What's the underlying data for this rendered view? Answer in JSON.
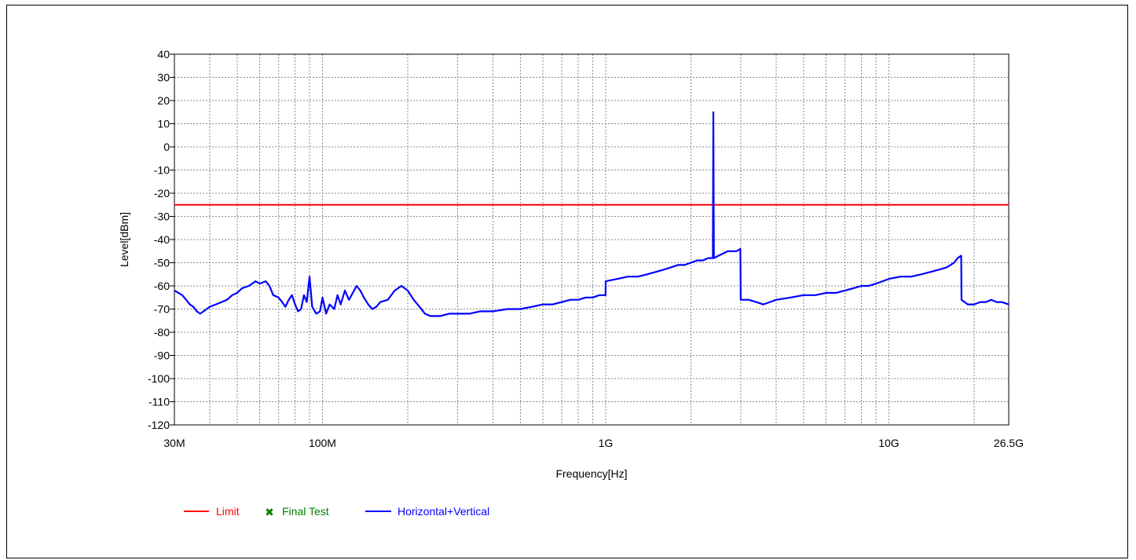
{
  "chart_data": {
    "type": "line",
    "xlabel": "Frequency[Hz]",
    "ylabel": "Level[dBm]",
    "x_scale": "log",
    "xlim": [
      "30M",
      "26.5G"
    ],
    "ylim": [
      -120,
      40
    ],
    "y_ticks": [
      40,
      30,
      20,
      10,
      0,
      -10,
      -20,
      -30,
      -40,
      -50,
      -60,
      -70,
      -80,
      -90,
      -100,
      -110,
      -120
    ],
    "x_ticks": [
      {
        "label": "30M",
        "hz": 30000000
      },
      {
        "label": "100M",
        "hz": 100000000
      },
      {
        "label": "1G",
        "hz": 1000000000
      },
      {
        "label": "10G",
        "hz": 10000000000
      },
      {
        "label": "26.5G",
        "hz": 26500000000
      }
    ],
    "grid": true,
    "legend_position": "bottom-left",
    "series": [
      {
        "name": "Limit",
        "color": "#ff0000",
        "points": [
          [
            30000000,
            -25
          ],
          [
            26500000000,
            -25
          ]
        ]
      },
      {
        "name": "Final Test",
        "color": "#008000",
        "points": []
      },
      {
        "name": "Horizontal+Vertical",
        "color": "#0000ff",
        "points": [
          [
            30000000,
            -62
          ],
          [
            31000000,
            -63
          ],
          [
            32000000,
            -64
          ],
          [
            33000000,
            -66
          ],
          [
            34000000,
            -68
          ],
          [
            35000000,
            -69
          ],
          [
            36000000,
            -71
          ],
          [
            37000000,
            -72
          ],
          [
            38000000,
            -71
          ],
          [
            40000000,
            -69
          ],
          [
            42000000,
            -68
          ],
          [
            44000000,
            -67
          ],
          [
            46000000,
            -66
          ],
          [
            48000000,
            -64
          ],
          [
            50000000,
            -63
          ],
          [
            52000000,
            -61
          ],
          [
            55000000,
            -60
          ],
          [
            58000000,
            -58
          ],
          [
            60000000,
            -59
          ],
          [
            63000000,
            -58
          ],
          [
            65000000,
            -60
          ],
          [
            67000000,
            -64
          ],
          [
            70000000,
            -65
          ],
          [
            72000000,
            -67
          ],
          [
            74000000,
            -69
          ],
          [
            76000000,
            -66
          ],
          [
            78000000,
            -64
          ],
          [
            80000000,
            -68
          ],
          [
            82000000,
            -71
          ],
          [
            84000000,
            -70
          ],
          [
            86000000,
            -64
          ],
          [
            88000000,
            -67
          ],
          [
            90000000,
            -56
          ],
          [
            92000000,
            -69
          ],
          [
            95000000,
            -72
          ],
          [
            98000000,
            -71
          ],
          [
            100000000,
            -65
          ],
          [
            103000000,
            -72
          ],
          [
            106000000,
            -68
          ],
          [
            110000000,
            -70
          ],
          [
            113000000,
            -64
          ],
          [
            116000000,
            -68
          ],
          [
            120000000,
            -62
          ],
          [
            124000000,
            -66
          ],
          [
            128000000,
            -63
          ],
          [
            132000000,
            -60
          ],
          [
            136000000,
            -62
          ],
          [
            140000000,
            -65
          ],
          [
            145000000,
            -68
          ],
          [
            150000000,
            -70
          ],
          [
            155000000,
            -69
          ],
          [
            160000000,
            -67
          ],
          [
            170000000,
            -66
          ],
          [
            180000000,
            -62
          ],
          [
            190000000,
            -60
          ],
          [
            200000000,
            -62
          ],
          [
            210000000,
            -66
          ],
          [
            220000000,
            -69
          ],
          [
            230000000,
            -72
          ],
          [
            240000000,
            -73
          ],
          [
            260000000,
            -73
          ],
          [
            280000000,
            -72
          ],
          [
            300000000,
            -72
          ],
          [
            330000000,
            -72
          ],
          [
            360000000,
            -71
          ],
          [
            400000000,
            -71
          ],
          [
            450000000,
            -70
          ],
          [
            500000000,
            -70
          ],
          [
            550000000,
            -69
          ],
          [
            600000000,
            -68
          ],
          [
            650000000,
            -68
          ],
          [
            700000000,
            -67
          ],
          [
            750000000,
            -66
          ],
          [
            800000000,
            -66
          ],
          [
            850000000,
            -65
          ],
          [
            900000000,
            -65
          ],
          [
            950000000,
            -64
          ],
          [
            999000000,
            -64
          ],
          [
            1000000000,
            -58
          ],
          [
            1100000000,
            -57
          ],
          [
            1200000000,
            -56
          ],
          [
            1300000000,
            -56
          ],
          [
            1400000000,
            -55
          ],
          [
            1500000000,
            -54
          ],
          [
            1600000000,
            -53
          ],
          [
            1700000000,
            -52
          ],
          [
            1800000000,
            -51
          ],
          [
            1900000000,
            -51
          ],
          [
            2000000000,
            -50
          ],
          [
            2100000000,
            -49
          ],
          [
            2200000000,
            -49
          ],
          [
            2300000000,
            -48
          ],
          [
            2390000000,
            -48
          ],
          [
            2400000000,
            15
          ],
          [
            2410000000,
            -48
          ],
          [
            2500000000,
            -47
          ],
          [
            2600000000,
            -46
          ],
          [
            2700000000,
            -45
          ],
          [
            2800000000,
            -45
          ],
          [
            2900000000,
            -45
          ],
          [
            2990000000,
            -44
          ],
          [
            3000000000,
            -66
          ],
          [
            3200000000,
            -66
          ],
          [
            3400000000,
            -67
          ],
          [
            3600000000,
            -68
          ],
          [
            3800000000,
            -67
          ],
          [
            4000000000,
            -66
          ],
          [
            4500000000,
            -65
          ],
          [
            5000000000,
            -64
          ],
          [
            5500000000,
            -64
          ],
          [
            6000000000,
            -63
          ],
          [
            6500000000,
            -63
          ],
          [
            7000000000,
            -62
          ],
          [
            7500000000,
            -61
          ],
          [
            8000000000,
            -60
          ],
          [
            8500000000,
            -60
          ],
          [
            9000000000,
            -59
          ],
          [
            9500000000,
            -58
          ],
          [
            10000000000,
            -57
          ],
          [
            11000000000,
            -56
          ],
          [
            12000000000,
            -56
          ],
          [
            13000000000,
            -55
          ],
          [
            14000000000,
            -54
          ],
          [
            15000000000,
            -53
          ],
          [
            16000000000,
            -52
          ],
          [
            17000000000,
            -50
          ],
          [
            17500000000,
            -48
          ],
          [
            18000000000,
            -47
          ],
          [
            18050000000,
            -66
          ],
          [
            19000000000,
            -68
          ],
          [
            20000000000,
            -68
          ],
          [
            21000000000,
            -67
          ],
          [
            22000000000,
            -67
          ],
          [
            23000000000,
            -66
          ],
          [
            24000000000,
            -67
          ],
          [
            25000000000,
            -67
          ],
          [
            26500000000,
            -68
          ]
        ]
      }
    ]
  },
  "legend": {
    "items": [
      {
        "label": "Limit",
        "color": "#ff0000",
        "marker": "line"
      },
      {
        "label": "Final Test",
        "color": "#008000",
        "marker": "x-marker-icon"
      },
      {
        "label": "Horizontal+Vertical",
        "color": "#0000ff",
        "marker": "line"
      }
    ]
  }
}
